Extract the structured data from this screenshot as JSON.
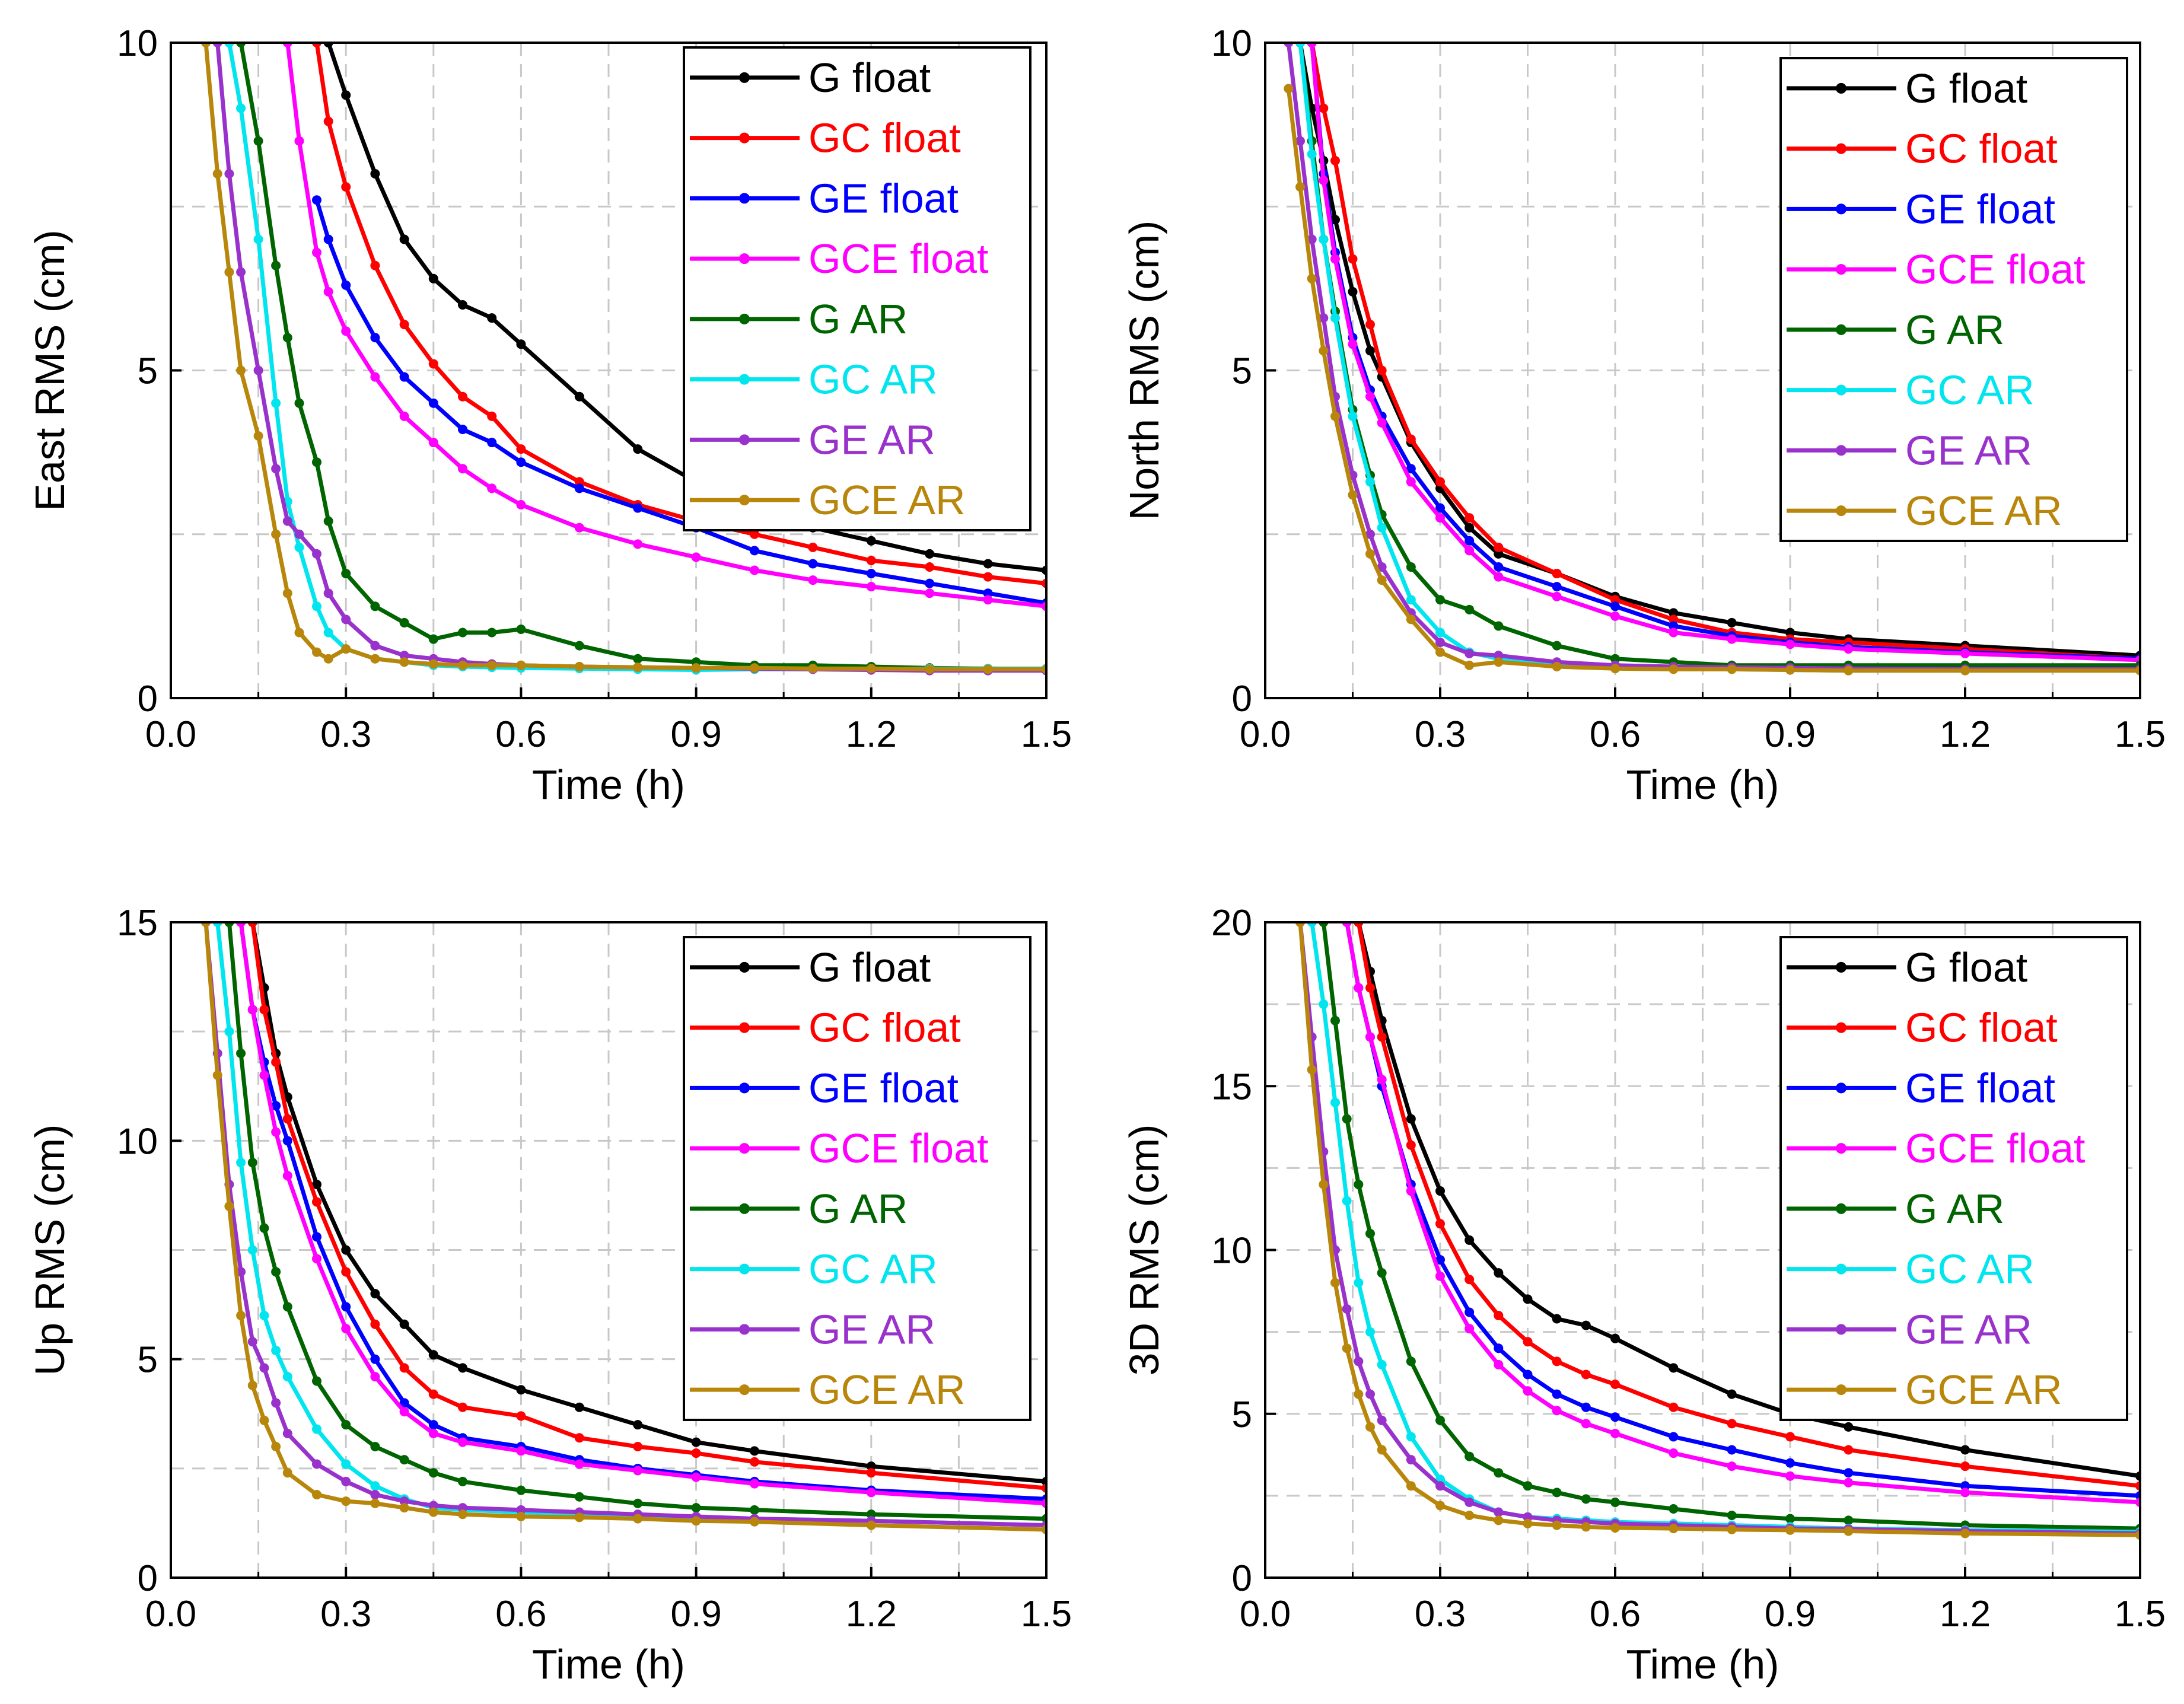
{
  "series_styles": [
    {
      "name": "G float",
      "color": "#000000"
    },
    {
      "name": "GC float",
      "color": "#ff0000"
    },
    {
      "name": "GE float",
      "color": "#0000ff"
    },
    {
      "name": "GCE float",
      "color": "#ff00ff"
    },
    {
      "name": "G AR",
      "color": "#006400"
    },
    {
      "name": "GC AR",
      "color": "#00e5ee"
    },
    {
      "name": "GE AR",
      "color": "#9932cc"
    },
    {
      "name": "GCE AR",
      "color": "#b8860b"
    }
  ],
  "chart_data": [
    {
      "type": "line",
      "xlabel": "Time (h)",
      "ylabel": "East RMS (cm)",
      "xlim": [
        0,
        1.5
      ],
      "ylim": [
        0,
        10
      ],
      "xticks": [
        "0.0",
        "0.3",
        "0.6",
        "0.9",
        "1.2",
        "1.5"
      ],
      "yticks": [
        "0",
        "5",
        "10"
      ],
      "ytick_values": [
        0,
        5,
        10
      ],
      "legend": "top-right",
      "x": [
        0.06,
        0.08,
        0.1,
        0.12,
        0.15,
        0.18,
        0.2,
        0.22,
        0.25,
        0.27,
        0.3,
        0.35,
        0.4,
        0.45,
        0.5,
        0.55,
        0.6,
        0.7,
        0.8,
        0.9,
        1.0,
        1.1,
        1.2,
        1.3,
        1.4,
        1.5
      ],
      "series": [
        {
          "name": "G float",
          "values": [
            null,
            null,
            null,
            null,
            null,
            null,
            null,
            null,
            null,
            10.0,
            9.2,
            8.0,
            7.0,
            6.4,
            6.0,
            5.8,
            5.4,
            4.6,
            3.8,
            3.3,
            2.9,
            2.6,
            2.4,
            2.2,
            2.05,
            1.95
          ]
        },
        {
          "name": "GC float",
          "values": [
            null,
            null,
            null,
            null,
            null,
            null,
            null,
            null,
            10.0,
            8.8,
            7.8,
            6.6,
            5.7,
            5.1,
            4.6,
            4.3,
            3.8,
            3.3,
            2.95,
            2.7,
            2.5,
            2.3,
            2.1,
            2.0,
            1.85,
            1.75
          ]
        },
        {
          "name": "GE float",
          "values": [
            null,
            null,
            null,
            null,
            null,
            null,
            null,
            null,
            7.6,
            7.0,
            6.3,
            5.5,
            4.9,
            4.5,
            4.1,
            3.9,
            3.6,
            3.2,
            2.9,
            2.6,
            2.25,
            2.05,
            1.9,
            1.75,
            1.6,
            1.45
          ]
        },
        {
          "name": "GCE float",
          "values": [
            null,
            null,
            null,
            null,
            null,
            null,
            10.0,
            8.5,
            6.8,
            6.2,
            5.6,
            4.9,
            4.3,
            3.9,
            3.5,
            3.2,
            2.95,
            2.6,
            2.35,
            2.15,
            1.95,
            1.8,
            1.7,
            1.6,
            1.5,
            1.4
          ]
        },
        {
          "name": "G AR",
          "values": [
            null,
            null,
            null,
            10.0,
            8.5,
            6.6,
            5.5,
            4.5,
            3.6,
            2.7,
            1.9,
            1.4,
            1.15,
            0.9,
            1.0,
            1.0,
            1.05,
            0.8,
            0.6,
            0.55,
            0.5,
            0.5,
            0.48,
            0.46,
            0.45,
            0.44
          ]
        },
        {
          "name": "GC AR",
          "values": [
            null,
            null,
            10.0,
            9.0,
            7.0,
            4.5,
            3.0,
            2.3,
            1.4,
            1.0,
            0.75,
            0.6,
            0.55,
            0.5,
            0.48,
            0.47,
            0.46,
            0.45,
            0.44,
            0.43,
            0.44,
            0.44,
            0.44,
            0.45,
            0.45,
            0.45
          ]
        },
        {
          "name": "GE AR",
          "values": [
            null,
            10.0,
            8.0,
            6.5,
            5.0,
            3.5,
            2.7,
            2.5,
            2.2,
            1.6,
            1.2,
            0.8,
            0.65,
            0.6,
            0.55,
            0.52,
            0.5,
            0.48,
            0.47,
            0.46,
            0.45,
            0.44,
            0.43,
            0.42,
            0.42,
            0.42
          ]
        },
        {
          "name": "GCE AR",
          "values": [
            10.0,
            8.0,
            6.5,
            5.0,
            4.0,
            2.5,
            1.6,
            1.0,
            0.7,
            0.6,
            0.75,
            0.6,
            0.55,
            0.52,
            0.5,
            0.5,
            0.5,
            0.48,
            0.47,
            0.46,
            0.46,
            0.45,
            0.45,
            0.44,
            0.44,
            0.44
          ]
        }
      ]
    },
    {
      "type": "line",
      "xlabel": "Time (h)",
      "ylabel": "North RMS (cm)",
      "xlim": [
        0,
        1.5
      ],
      "ylim": [
        0,
        10
      ],
      "xticks": [
        "0.0",
        "0.3",
        "0.6",
        "0.9",
        "1.2",
        "1.5"
      ],
      "yticks": [
        "0",
        "5",
        "10"
      ],
      "ytick_values": [
        0,
        5,
        10
      ],
      "legend": "top-right",
      "x": [
        0.04,
        0.06,
        0.08,
        0.1,
        0.12,
        0.15,
        0.18,
        0.2,
        0.25,
        0.3,
        0.35,
        0.4,
        0.5,
        0.6,
        0.7,
        0.8,
        0.9,
        1.0,
        1.2,
        1.5
      ],
      "series": [
        {
          "name": "G float",
          "values": [
            null,
            10.0,
            9.0,
            8.2,
            7.3,
            6.2,
            5.3,
            4.9,
            3.9,
            3.2,
            2.6,
            2.2,
            1.9,
            1.55,
            1.3,
            1.15,
            1.0,
            0.9,
            0.8,
            0.65
          ]
        },
        {
          "name": "GC float",
          "values": [
            null,
            null,
            10.0,
            9.0,
            8.2,
            6.7,
            5.7,
            5.0,
            3.95,
            3.3,
            2.75,
            2.3,
            1.9,
            1.5,
            1.2,
            1.0,
            0.9,
            0.85,
            0.75,
            0.6
          ]
        },
        {
          "name": "GE float",
          "values": [
            null,
            null,
            10.0,
            8.0,
            6.8,
            5.5,
            4.7,
            4.3,
            3.5,
            2.9,
            2.4,
            2.0,
            1.7,
            1.4,
            1.1,
            0.95,
            0.85,
            0.78,
            0.7,
            0.6
          ]
        },
        {
          "name": "GCE float",
          "values": [
            null,
            null,
            10.0,
            7.9,
            6.7,
            5.4,
            4.6,
            4.2,
            3.3,
            2.75,
            2.25,
            1.85,
            1.55,
            1.25,
            1.0,
            0.9,
            0.82,
            0.75,
            0.68,
            0.58
          ]
        },
        {
          "name": "G AR",
          "values": [
            null,
            10.0,
            8.5,
            7.0,
            5.9,
            4.4,
            3.4,
            2.8,
            2.0,
            1.5,
            1.35,
            1.1,
            0.8,
            0.6,
            0.55,
            0.5,
            0.5,
            0.5,
            0.5,
            0.5
          ]
        },
        {
          "name": "GC AR",
          "values": [
            null,
            10.0,
            8.3,
            7.0,
            5.8,
            4.3,
            3.3,
            2.6,
            1.5,
            1.0,
            0.7,
            0.6,
            0.5,
            0.46,
            0.45,
            0.44,
            0.43,
            0.42,
            0.42,
            0.42
          ]
        },
        {
          "name": "GE AR",
          "values": [
            10.0,
            8.5,
            7.0,
            5.8,
            4.6,
            3.4,
            2.5,
            2.0,
            1.3,
            0.85,
            0.68,
            0.65,
            0.55,
            0.5,
            0.48,
            0.47,
            0.46,
            0.45,
            0.44,
            0.44
          ]
        },
        {
          "name": "GCE AR",
          "values": [
            9.3,
            7.8,
            6.4,
            5.3,
            4.3,
            3.1,
            2.2,
            1.8,
            1.2,
            0.7,
            0.5,
            0.55,
            0.48,
            0.45,
            0.44,
            0.44,
            0.43,
            0.42,
            0.42,
            0.42
          ]
        }
      ]
    },
    {
      "type": "line",
      "xlabel": "Time (h)",
      "ylabel": "Up RMS (cm)",
      "xlim": [
        0,
        1.5
      ],
      "ylim": [
        0,
        15
      ],
      "xticks": [
        "0.0",
        "0.3",
        "0.6",
        "0.9",
        "1.2",
        "1.5"
      ],
      "yticks": [
        "0",
        "5",
        "10",
        "15"
      ],
      "ytick_values": [
        0,
        5,
        10,
        15
      ],
      "legend": "top-right",
      "x": [
        0.06,
        0.08,
        0.1,
        0.12,
        0.14,
        0.16,
        0.18,
        0.2,
        0.25,
        0.3,
        0.35,
        0.4,
        0.45,
        0.5,
        0.6,
        0.7,
        0.8,
        0.9,
        1.0,
        1.2,
        1.5
      ],
      "series": [
        {
          "name": "G float",
          "values": [
            null,
            null,
            null,
            null,
            15.0,
            13.5,
            12.0,
            11.0,
            9.0,
            7.5,
            6.5,
            5.8,
            5.1,
            4.8,
            4.3,
            3.9,
            3.5,
            3.1,
            2.9,
            2.55,
            2.2
          ]
        },
        {
          "name": "GC float",
          "values": [
            null,
            null,
            null,
            null,
            15.0,
            13.0,
            11.8,
            10.5,
            8.6,
            7.0,
            5.8,
            4.8,
            4.2,
            3.9,
            3.7,
            3.2,
            3.0,
            2.85,
            2.65,
            2.4,
            2.05
          ]
        },
        {
          "name": "GE float",
          "values": [
            null,
            null,
            null,
            15.0,
            13.0,
            11.8,
            10.8,
            10.0,
            7.8,
            6.2,
            5.0,
            4.0,
            3.5,
            3.2,
            3.0,
            2.7,
            2.5,
            2.35,
            2.2,
            2.0,
            1.8
          ]
        },
        {
          "name": "GCE float",
          "values": [
            null,
            null,
            null,
            15.0,
            13.0,
            11.5,
            10.2,
            9.2,
            7.3,
            5.7,
            4.6,
            3.8,
            3.3,
            3.1,
            2.9,
            2.6,
            2.45,
            2.3,
            2.15,
            1.95,
            1.7
          ]
        },
        {
          "name": "G AR",
          "values": [
            null,
            null,
            15.0,
            12.0,
            9.5,
            8.0,
            7.0,
            6.2,
            4.5,
            3.5,
            3.0,
            2.7,
            2.4,
            2.2,
            2.0,
            1.85,
            1.7,
            1.6,
            1.55,
            1.45,
            1.35
          ]
        },
        {
          "name": "GC AR",
          "values": [
            null,
            15.0,
            12.5,
            9.5,
            7.5,
            6.0,
            5.2,
            4.6,
            3.4,
            2.6,
            2.1,
            1.8,
            1.6,
            1.55,
            1.5,
            1.45,
            1.4,
            1.35,
            1.35,
            1.3,
            1.2
          ]
        },
        {
          "name": "GE AR",
          "values": [
            15.0,
            12.0,
            9.0,
            7.0,
            5.4,
            4.8,
            4.0,
            3.3,
            2.6,
            2.2,
            1.9,
            1.75,
            1.65,
            1.6,
            1.55,
            1.5,
            1.45,
            1.4,
            1.35,
            1.3,
            1.2
          ]
        },
        {
          "name": "GCE AR",
          "values": [
            15.0,
            11.5,
            8.5,
            6.0,
            4.4,
            3.6,
            3.0,
            2.4,
            1.9,
            1.75,
            1.7,
            1.6,
            1.5,
            1.45,
            1.4,
            1.38,
            1.35,
            1.3,
            1.28,
            1.2,
            1.1
          ]
        }
      ]
    },
    {
      "type": "line",
      "xlabel": "Time (h)",
      "ylabel": "3D RMS (cm)",
      "xlim": [
        0,
        1.5
      ],
      "ylim": [
        0,
        20
      ],
      "xticks": [
        "0.0",
        "0.3",
        "0.6",
        "0.9",
        "1.2",
        "1.5"
      ],
      "yticks": [
        "0",
        "5",
        "10",
        "15",
        "20"
      ],
      "ytick_values": [
        0,
        5,
        10,
        15,
        20
      ],
      "legend": "top-right",
      "x": [
        0.06,
        0.08,
        0.1,
        0.12,
        0.14,
        0.16,
        0.18,
        0.2,
        0.25,
        0.3,
        0.35,
        0.4,
        0.45,
        0.5,
        0.55,
        0.6,
        0.7,
        0.8,
        0.9,
        1.0,
        1.2,
        1.5
      ],
      "series": [
        {
          "name": "G float",
          "values": [
            null,
            null,
            null,
            null,
            null,
            20.0,
            18.5,
            17.0,
            14.0,
            11.8,
            10.3,
            9.3,
            8.5,
            7.9,
            7.7,
            7.3,
            6.4,
            5.6,
            5.0,
            4.6,
            3.9,
            3.1
          ]
        },
        {
          "name": "GC float",
          "values": [
            null,
            null,
            null,
            null,
            null,
            20.0,
            18.0,
            16.5,
            13.2,
            10.8,
            9.1,
            8.0,
            7.2,
            6.6,
            6.2,
            5.9,
            5.2,
            4.7,
            4.3,
            3.9,
            3.4,
            2.8
          ]
        },
        {
          "name": "GE float",
          "values": [
            null,
            null,
            null,
            null,
            20.0,
            18.0,
            16.5,
            15.0,
            12.0,
            9.7,
            8.1,
            7.0,
            6.2,
            5.6,
            5.2,
            4.9,
            4.3,
            3.9,
            3.5,
            3.2,
            2.8,
            2.5
          ]
        },
        {
          "name": "GCE float",
          "values": [
            null,
            null,
            null,
            null,
            20.0,
            18.0,
            16.5,
            15.2,
            11.8,
            9.2,
            7.6,
            6.5,
            5.7,
            5.1,
            4.7,
            4.4,
            3.8,
            3.4,
            3.1,
            2.9,
            2.6,
            2.3
          ]
        },
        {
          "name": "G AR",
          "values": [
            null,
            null,
            20.0,
            17.0,
            14.0,
            12.0,
            10.5,
            9.3,
            6.6,
            4.8,
            3.7,
            3.2,
            2.8,
            2.6,
            2.4,
            2.3,
            2.1,
            1.9,
            1.8,
            1.75,
            1.6,
            1.5
          ]
        },
        {
          "name": "GC AR",
          "values": [
            null,
            20.0,
            17.5,
            14.5,
            11.5,
            9.0,
            7.5,
            6.5,
            4.3,
            3.0,
            2.4,
            2.0,
            1.85,
            1.8,
            1.75,
            1.7,
            1.65,
            1.6,
            1.55,
            1.5,
            1.45,
            1.4
          ]
        },
        {
          "name": "GE AR",
          "values": [
            20.0,
            16.5,
            13.0,
            10.0,
            8.2,
            6.6,
            5.6,
            4.8,
            3.6,
            2.8,
            2.3,
            2.0,
            1.85,
            1.75,
            1.7,
            1.65,
            1.6,
            1.55,
            1.5,
            1.48,
            1.42,
            1.35
          ]
        },
        {
          "name": "GCE AR",
          "values": [
            20.0,
            15.5,
            12.0,
            9.0,
            7.0,
            5.6,
            4.6,
            3.9,
            2.8,
            2.2,
            1.9,
            1.75,
            1.65,
            1.6,
            1.55,
            1.52,
            1.5,
            1.47,
            1.45,
            1.42,
            1.35,
            1.3
          ]
        }
      ]
    }
  ]
}
